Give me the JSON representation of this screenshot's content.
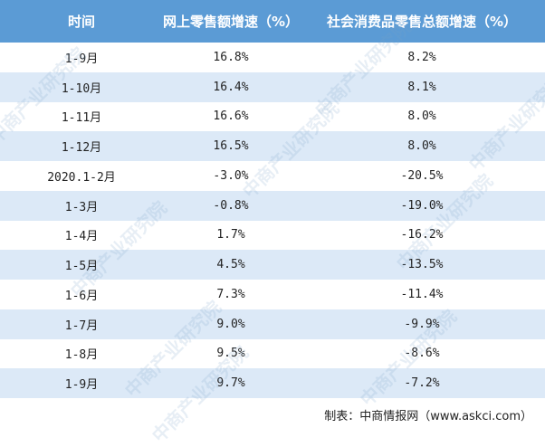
{
  "table": {
    "header": [
      "时间",
      "网上零售额增速（%）",
      "社会消费品零售总额增速（%）"
    ],
    "rows": [
      [
        "1-9月",
        "16.8%",
        "8.2%"
      ],
      [
        "1-10月",
        "16.4%",
        "8.1%"
      ],
      [
        "1-11月",
        "16.6%",
        "8.0%"
      ],
      [
        "1-12月",
        "16.5%",
        "8.0%"
      ],
      [
        "2020.1-2月",
        "-3.0%",
        "-20.5%"
      ],
      [
        "1-3月",
        "-0.8%",
        "-19.0%"
      ],
      [
        "1-4月",
        "1.7%",
        "-16.2%"
      ],
      [
        "1-5月",
        "4.5%",
        "-13.5%"
      ],
      [
        "1-6月",
        "7.3%",
        "-11.4%"
      ],
      [
        "1-7月",
        "9.0%",
        "-9.9%"
      ],
      [
        "1-8月",
        "9.5%",
        "-8.6%"
      ],
      [
        "1-9月",
        "9.7%",
        "-7.2%"
      ]
    ]
  },
  "watermark": "中商产业研究院",
  "footer": "制表：中商情报网（www.askci.com）"
}
